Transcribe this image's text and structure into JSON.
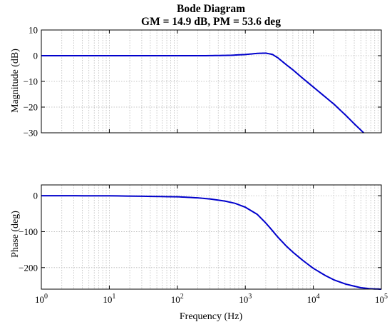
{
  "chart_data": [
    {
      "type": "line",
      "title": "Bode Diagram",
      "subtitle": "GM = 14.9 dB, PM = 53.6 deg",
      "xlabel": "",
      "ylabel": "Magnitude (dB)",
      "xscale": "log",
      "xlim": [
        1,
        100000
      ],
      "ylim": [
        -30,
        10
      ],
      "yticks": [
        10,
        0,
        -10,
        -20,
        -30
      ],
      "ytick_labels": [
        "10",
        "0",
        "−10",
        "−20",
        "−30"
      ],
      "grid": true,
      "series": [
        {
          "color": "#0000cc",
          "x": [
            1,
            10,
            100,
            300,
            600,
            1000,
            1500,
            2000,
            2500,
            3000,
            4000,
            5000,
            7000,
            10000,
            20000,
            30000,
            40000,
            55000
          ],
          "y": [
            0,
            0,
            0,
            0.02,
            0.15,
            0.45,
            0.9,
            1.0,
            0.5,
            -0.8,
            -3.5,
            -5.5,
            -8.8,
            -12.2,
            -18.8,
            -23.2,
            -26.5,
            -30
          ]
        }
      ]
    },
    {
      "type": "line",
      "xlabel": "Frequency (Hz)",
      "ylabel": "Phase (deg)",
      "xscale": "log",
      "xlim": [
        1,
        100000
      ],
      "ylim": [
        -260,
        30
      ],
      "xtick_labels": [
        {
          "base": "10",
          "exp": "0"
        },
        {
          "base": "10",
          "exp": "1"
        },
        {
          "base": "10",
          "exp": "2"
        },
        {
          "base": "10",
          "exp": "3"
        },
        {
          "base": "10",
          "exp": "4"
        },
        {
          "base": "10",
          "exp": "5"
        }
      ],
      "yticks": [
        0,
        -100,
        -200
      ],
      "ytick_labels": [
        "0",
        "−100",
        "−200"
      ],
      "grid": true,
      "series": [
        {
          "color": "#0000cc",
          "x": [
            1,
            10,
            100,
            200,
            300,
            500,
            700,
            1000,
            1500,
            2000,
            2500,
            3000,
            4000,
            5000,
            7000,
            10000,
            15000,
            20000,
            30000,
            50000,
            70000,
            100000
          ],
          "y": [
            0,
            -0.3,
            -3,
            -6,
            -9,
            -15,
            -21,
            -32,
            -52,
            -76,
            -97,
            -115,
            -140,
            -157,
            -180,
            -202,
            -222,
            -234,
            -246,
            -256,
            -259,
            -260
          ]
        }
      ]
    }
  ]
}
